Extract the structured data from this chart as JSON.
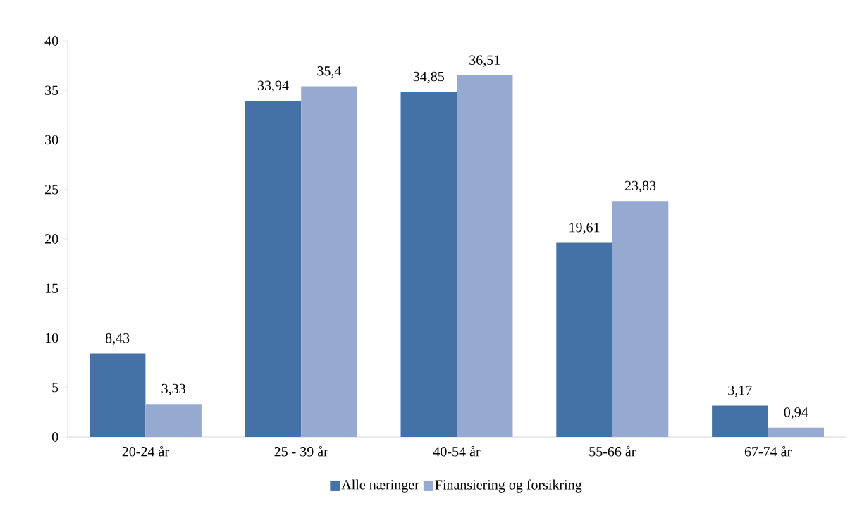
{
  "chart_data": {
    "type": "bar",
    "categories": [
      "20-24 år",
      "25 - 39 år",
      "40-54 år",
      "55-66 år",
      "67-74 år"
    ],
    "series": [
      {
        "name": "Alle næringer",
        "color": "#4472a6",
        "values": [
          8.43,
          33.94,
          34.85,
          19.61,
          3.17
        ],
        "value_labels": [
          "8,43",
          "33,94",
          "34,85",
          "19,61",
          "3,17"
        ]
      },
      {
        "name": "Finansiering og forsikring",
        "color": "#95a9d1",
        "values": [
          3.33,
          35.4,
          36.51,
          23.83,
          0.94
        ],
        "value_labels": [
          "3,33",
          "35,4",
          "36,51",
          "23,83",
          "0,94"
        ]
      }
    ],
    "ylim": [
      0,
      40
    ],
    "yticks": [
      0,
      5,
      10,
      15,
      20,
      25,
      30,
      35,
      40
    ],
    "grid": false,
    "legend": "bottom"
  }
}
